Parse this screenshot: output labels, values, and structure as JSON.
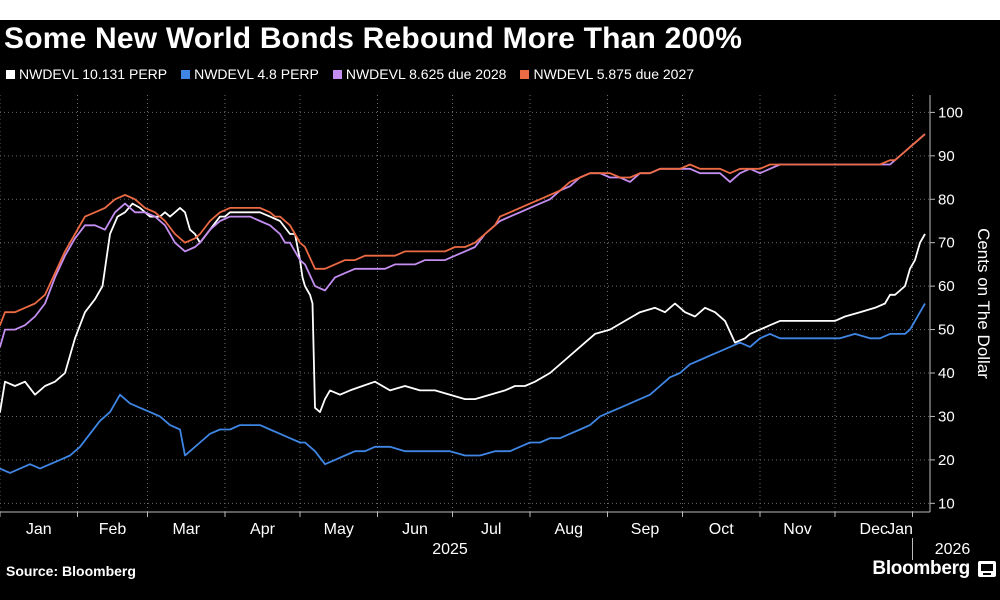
{
  "header": {
    "title": "Some New World Bonds Rebound More Than 200%"
  },
  "footer": {
    "source": "Source: Bloomberg",
    "brand": "Bloomberg"
  },
  "colors": {
    "white": "#ffffff",
    "blue": "#3f86e4",
    "purple": "#c48ef0",
    "orange": "#ec6a44"
  },
  "chart_data": {
    "type": "line",
    "title": "Some New World Bonds Rebound More Than 200%",
    "xlabel": "",
    "ylabel": "Cents on The Dollar",
    "ylim": [
      8,
      104
    ],
    "xlim": [
      0,
      372
    ],
    "yticks": [
      10,
      20,
      30,
      40,
      50,
      60,
      70,
      80,
      90,
      100
    ],
    "xticks": [
      {
        "label": "Jan",
        "x": 0
      },
      {
        "label": "Feb",
        "x": 31
      },
      {
        "label": "Mar",
        "x": 59
      },
      {
        "label": "Apr",
        "x": 90
      },
      {
        "label": "May",
        "x": 120
      },
      {
        "label": "Jun",
        "x": 151
      },
      {
        "label": "Jul",
        "x": 181
      },
      {
        "label": "Aug",
        "x": 212
      },
      {
        "label": "Sep",
        "x": 243
      },
      {
        "label": "Oct",
        "x": 273
      },
      {
        "label": "Nov",
        "x": 304
      },
      {
        "label": "Dec",
        "x": 334
      },
      {
        "label": "Jan",
        "x": 365
      }
    ],
    "year_labels": [
      {
        "label": "2025",
        "x": 180
      },
      {
        "label": "2026",
        "x": 365
      }
    ],
    "grid": true,
    "legend_position": "top-left",
    "series": [
      {
        "name": "NWDEVL 10.131 PERP",
        "color": "#ffffff",
        "x": [
          -2,
          0,
          2,
          6,
          10,
          14,
          18,
          22,
          26,
          30,
          34,
          38,
          41,
          44,
          47,
          50,
          53,
          56,
          60,
          64,
          66,
          68,
          70,
          72,
          74,
          76,
          78,
          80,
          84,
          88,
          90,
          92,
          96,
          100,
          104,
          108,
          112,
          116,
          118,
          120,
          121,
          122,
          123,
          124,
          125,
          126,
          128,
          130,
          132,
          136,
          140,
          145,
          150,
          156,
          162,
          168,
          174,
          180,
          186,
          190,
          196,
          202,
          206,
          210,
          214,
          220,
          226,
          232,
          238,
          244,
          250,
          256,
          262,
          266,
          270,
          274,
          278,
          282,
          286,
          290,
          294,
          298,
          300,
          304,
          308,
          312,
          318,
          324,
          330,
          334,
          338,
          344,
          350,
          354,
          356,
          358,
          360,
          362,
          364,
          366,
          368,
          370
        ],
        "y": [
          31,
          31,
          38,
          37,
          38,
          35,
          37,
          38,
          40,
          48,
          54,
          57,
          60,
          72,
          76,
          77,
          79,
          78,
          76,
          76,
          77,
          76,
          77,
          78,
          77,
          73,
          72,
          70,
          73,
          76,
          76,
          77,
          77,
          77,
          77,
          76,
          75,
          72,
          72,
          66,
          62,
          60,
          59,
          58,
          56,
          32,
          31,
          34,
          36,
          35,
          36,
          37,
          38,
          36,
          37,
          36,
          36,
          35,
          34,
          34,
          35,
          36,
          37,
          37,
          38,
          40,
          43,
          46,
          49,
          50,
          52,
          54,
          55,
          54,
          56,
          54,
          53,
          55,
          54,
          52,
          47,
          48,
          49,
          50,
          51,
          52,
          52,
          52,
          52,
          52,
          53,
          54,
          55,
          56,
          58,
          58,
          59,
          60,
          64,
          66,
          70,
          72
        ]
      },
      {
        "name": "NWDEVL 4.8 PERP",
        "color": "#3f86e4",
        "x": [
          -2,
          0,
          4,
          8,
          12,
          16,
          20,
          24,
          28,
          32,
          36,
          40,
          44,
          48,
          50,
          52,
          56,
          60,
          64,
          68,
          72,
          74,
          76,
          80,
          84,
          88,
          92,
          96,
          100,
          104,
          108,
          112,
          116,
          120,
          122,
          124,
          126,
          130,
          134,
          138,
          142,
          146,
          150,
          156,
          162,
          168,
          174,
          180,
          186,
          192,
          198,
          204,
          208,
          212,
          216,
          220,
          224,
          228,
          232,
          236,
          240,
          244,
          248,
          252,
          256,
          260,
          264,
          268,
          272,
          276,
          280,
          284,
          288,
          292,
          296,
          300,
          304,
          308,
          312,
          318,
          324,
          330,
          336,
          342,
          348,
          352,
          356,
          358,
          360,
          362,
          364,
          366,
          368,
          370
        ],
        "y": [
          18,
          18,
          17,
          18,
          19,
          18,
          19,
          20,
          21,
          23,
          26,
          29,
          31,
          35,
          34,
          33,
          32,
          31,
          30,
          28,
          27,
          21,
          22,
          24,
          26,
          27,
          27,
          28,
          28,
          28,
          27,
          26,
          25,
          24,
          24,
          23,
          22,
          19,
          20,
          21,
          22,
          22,
          23,
          23,
          22,
          22,
          22,
          22,
          21,
          21,
          22,
          22,
          23,
          24,
          24,
          25,
          25,
          26,
          27,
          28,
          30,
          31,
          32,
          33,
          34,
          35,
          37,
          39,
          40,
          42,
          43,
          44,
          45,
          46,
          47,
          46,
          48,
          49,
          48,
          48,
          48,
          48,
          48,
          49,
          48,
          48,
          49,
          49,
          49,
          49,
          50,
          52,
          54,
          56
        ]
      },
      {
        "name": "NWDEVL 8.625 due 2028",
        "color": "#c48ef0",
        "x": [
          -2,
          0,
          2,
          6,
          10,
          14,
          18,
          22,
          26,
          30,
          34,
          38,
          42,
          46,
          50,
          54,
          58,
          62,
          66,
          70,
          74,
          78,
          80,
          84,
          88,
          92,
          96,
          100,
          104,
          108,
          110,
          112,
          114,
          116,
          118,
          120,
          122,
          126,
          130,
          134,
          138,
          142,
          146,
          150,
          154,
          158,
          162,
          166,
          170,
          174,
          178,
          182,
          186,
          190,
          194,
          198,
          200,
          204,
          208,
          212,
          216,
          220,
          224,
          228,
          232,
          236,
          240,
          244,
          248,
          252,
          256,
          260,
          264,
          268,
          272,
          276,
          280,
          284,
          288,
          292,
          296,
          300,
          304,
          308,
          312,
          316,
          320,
          324,
          328,
          332,
          336,
          340,
          344,
          348,
          352,
          356,
          358,
          360,
          362,
          364,
          366,
          368,
          370
        ],
        "y": [
          46,
          46,
          50,
          50,
          51,
          53,
          56,
          62,
          67,
          71,
          74,
          74,
          73,
          77,
          79,
          77,
          77,
          76,
          74,
          70,
          68,
          69,
          70,
          73,
          75,
          76,
          76,
          76,
          75,
          74,
          73,
          72,
          70,
          70,
          68,
          66,
          65,
          60,
          59,
          62,
          63,
          64,
          64,
          64,
          64,
          65,
          65,
          65,
          66,
          66,
          66,
          67,
          68,
          69,
          72,
          74,
          75,
          76,
          77,
          78,
          79,
          80,
          82,
          83,
          85,
          86,
          86,
          85,
          85,
          84,
          86,
          86,
          87,
          87,
          87,
          87,
          86,
          86,
          86,
          84,
          86,
          87,
          86,
          87,
          88,
          88,
          88,
          88,
          88,
          88,
          88,
          88,
          88,
          88,
          88,
          88,
          89,
          90,
          91,
          92,
          93,
          94,
          95
        ]
      },
      {
        "name": "NWDEVL 5.875 due 2027",
        "color": "#ec6a44",
        "x": [
          -2,
          0,
          2,
          6,
          10,
          14,
          18,
          22,
          26,
          30,
          34,
          38,
          42,
          46,
          50,
          54,
          58,
          62,
          66,
          70,
          74,
          78,
          80,
          84,
          88,
          92,
          96,
          100,
          104,
          108,
          110,
          112,
          114,
          116,
          118,
          120,
          122,
          126,
          130,
          134,
          138,
          142,
          146,
          150,
          154,
          158,
          162,
          166,
          170,
          174,
          178,
          182,
          186,
          190,
          194,
          198,
          200,
          204,
          208,
          212,
          216,
          220,
          224,
          228,
          232,
          236,
          240,
          244,
          248,
          252,
          256,
          260,
          264,
          268,
          272,
          276,
          280,
          284,
          288,
          292,
          296,
          300,
          304,
          308,
          312,
          316,
          320,
          324,
          328,
          332,
          336,
          340,
          344,
          348,
          352,
          356,
          358,
          360,
          362,
          364,
          366,
          368,
          370
        ],
        "y": [
          51,
          51,
          54,
          54,
          55,
          56,
          58,
          63,
          68,
          72,
          76,
          77,
          78,
          80,
          81,
          80,
          78,
          77,
          75,
          72,
          70,
          71,
          72,
          75,
          77,
          78,
          78,
          78,
          78,
          77,
          76,
          76,
          75,
          74,
          72,
          70,
          69,
          64,
          64,
          65,
          66,
          66,
          67,
          67,
          67,
          67,
          68,
          68,
          68,
          68,
          68,
          69,
          69,
          70,
          72,
          74,
          76,
          77,
          78,
          79,
          80,
          81,
          82,
          84,
          85,
          86,
          86,
          86,
          85,
          85,
          86,
          86,
          87,
          87,
          87,
          88,
          87,
          87,
          87,
          86,
          87,
          87,
          87,
          88,
          88,
          88,
          88,
          88,
          88,
          88,
          88,
          88,
          88,
          88,
          88,
          89,
          89,
          90,
          91,
          92,
          93,
          94,
          95
        ]
      }
    ]
  }
}
